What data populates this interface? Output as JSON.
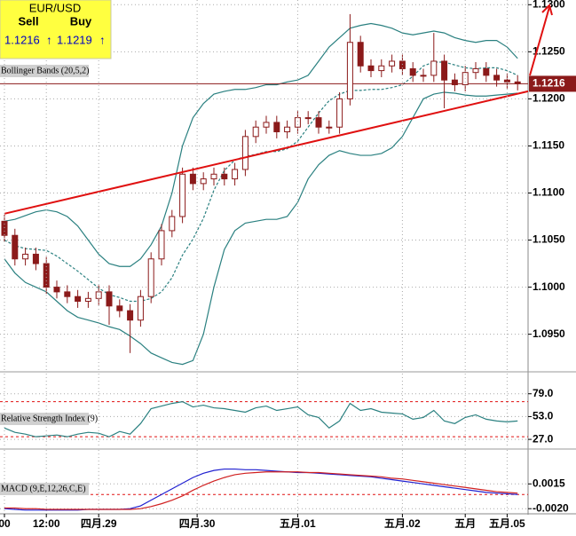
{
  "quote": {
    "symbol": "EUR/USD",
    "sell_label": "Sell",
    "buy_label": "Buy",
    "sell": 1.1216,
    "buy": 1.1219,
    "sell_arrow": "↑",
    "buy_arrow": "↑"
  },
  "chart_data": [
    {
      "type": "candlestick",
      "label": "Bollinger Bands (20,5,2)",
      "ylim": [
        1.0911,
        1.1305
      ],
      "yticks": [
        {
          "value": 1.13,
          "label": "1.1300"
        },
        {
          "value": 1.125,
          "label": "1.1250"
        },
        {
          "value": 1.12,
          "label": "1.1200"
        },
        {
          "value": 1.115,
          "label": "1.1150"
        },
        {
          "value": 1.11,
          "label": "1.1100"
        },
        {
          "value": 1.105,
          "label": "1.1050"
        },
        {
          "value": 1.1,
          "label": "1.1000"
        },
        {
          "value": 1.095,
          "label": "1.0950"
        }
      ],
      "grid": true,
      "color": "#8b1a1a",
      "last_price": 1.1216,
      "last_price_color": "#8b1a1a",
      "open": [
        1.107,
        1.1055,
        1.103,
        1.1035,
        1.1025,
        1.1,
        1.0995,
        1.099,
        1.0985,
        1.0988,
        1.0995,
        1.098,
        1.0975,
        1.0965,
        1.099,
        1.103,
        1.106,
        1.1075,
        1.112,
        1.111,
        1.1115,
        1.112,
        1.1115,
        1.1125,
        1.116,
        1.117,
        1.1175,
        1.1165,
        1.117,
        1.118,
        1.118,
        1.117,
        1.117,
        1.12,
        1.126,
        1.1235,
        1.123,
        1.1235,
        1.124,
        1.1232,
        1.1225,
        1.1225,
        1.124,
        1.122,
        1.1215,
        1.1228,
        1.1232,
        1.1225,
        1.122,
        1.1218
      ],
      "high": [
        1.1077,
        1.1062,
        1.1042,
        1.1042,
        1.1032,
        1.1007,
        1.1002,
        1.0997,
        1.0995,
        1.1002,
        1.1002,
        1.0987,
        1.0982,
        1.0997,
        1.1037,
        1.1067,
        1.1082,
        1.1127,
        1.1127,
        1.1122,
        1.1127,
        1.1127,
        1.1132,
        1.1167,
        1.1177,
        1.1182,
        1.1182,
        1.1177,
        1.1187,
        1.1187,
        1.1187,
        1.1177,
        1.1207,
        1.129,
        1.1267,
        1.1242,
        1.1242,
        1.1247,
        1.1247,
        1.1239,
        1.1232,
        1.127,
        1.1247,
        1.1227,
        1.1235,
        1.1239,
        1.1239,
        1.1232,
        1.1227,
        1.1225
      ],
      "low": [
        1.1048,
        1.1023,
        1.1023,
        1.1018,
        1.0993,
        1.0988,
        1.0983,
        1.0978,
        1.0978,
        1.0981,
        1.096,
        1.0968,
        1.093,
        1.0958,
        1.0983,
        1.1023,
        1.1053,
        1.1068,
        1.1103,
        1.1103,
        1.1108,
        1.1108,
        1.1108,
        1.1118,
        1.1153,
        1.1163,
        1.1158,
        1.1158,
        1.1163,
        1.1173,
        1.1163,
        1.1163,
        1.1163,
        1.1193,
        1.1228,
        1.1223,
        1.1223,
        1.1228,
        1.1225,
        1.1218,
        1.1218,
        1.1218,
        1.119,
        1.1208,
        1.1208,
        1.1221,
        1.1218,
        1.1213,
        1.1211,
        1.1209
      ],
      "close": [
        1.1055,
        1.103,
        1.1035,
        1.1025,
        1.1,
        1.0995,
        1.099,
        1.0985,
        1.0988,
        1.0995,
        1.098,
        1.0975,
        1.0965,
        1.099,
        1.103,
        1.106,
        1.1075,
        1.112,
        1.111,
        1.1115,
        1.112,
        1.1115,
        1.1125,
        1.116,
        1.117,
        1.1175,
        1.1165,
        1.117,
        1.118,
        1.118,
        1.117,
        1.117,
        1.12,
        1.126,
        1.1235,
        1.123,
        1.1235,
        1.124,
        1.1232,
        1.1225,
        1.1225,
        1.124,
        1.122,
        1.1215,
        1.1228,
        1.1232,
        1.1225,
        1.122,
        1.1218,
        1.1216
      ],
      "bands": {
        "color": "#2a8080",
        "upper": [
          1.107,
          1.1072,
          1.1076,
          1.108,
          1.1082,
          1.108,
          1.1075,
          1.1065,
          1.105,
          1.1035,
          1.1025,
          1.1022,
          1.1022,
          1.103,
          1.1045,
          1.1065,
          1.11,
          1.115,
          1.118,
          1.1195,
          1.1205,
          1.1208,
          1.121,
          1.121,
          1.1212,
          1.1215,
          1.1215,
          1.1218,
          1.122,
          1.1225,
          1.124,
          1.1255,
          1.1265,
          1.1275,
          1.1278,
          1.128,
          1.1278,
          1.1275,
          1.127,
          1.1268,
          1.127,
          1.1272,
          1.127,
          1.1265,
          1.1262,
          1.126,
          1.1262,
          1.1262,
          1.1255,
          1.1243
        ],
        "middle": [
          1.105,
          1.1044,
          1.1041,
          1.104,
          1.1039,
          1.1033,
          1.1025,
          1.1017,
          1.1008,
          1.0999,
          1.0992,
          1.0989,
          1.0985,
          1.0985,
          1.0988,
          1.0995,
          1.101,
          1.1034,
          1.1051,
          1.1073,
          1.1103,
          1.1124,
          1.1135,
          1.1139,
          1.1141,
          1.1144,
          1.1144,
          1.1147,
          1.1155,
          1.117,
          1.1185,
          1.1198,
          1.1205,
          1.1209,
          1.1209,
          1.121,
          1.121,
          1.1212,
          1.1215,
          1.1224,
          1.1235,
          1.1239,
          1.1239,
          1.1236,
          1.1233,
          1.1232,
          1.1233,
          1.1233,
          1.123,
          1.1225
        ],
        "lower": [
          1.103,
          1.1015,
          1.1005,
          1.1,
          1.0995,
          1.0985,
          1.0975,
          1.0968,
          1.0965,
          1.0962,
          1.0958,
          1.0955,
          1.0948,
          1.094,
          1.093,
          1.0925,
          1.092,
          1.0918,
          1.0922,
          1.095,
          1.1,
          1.104,
          1.106,
          1.1068,
          1.107,
          1.1072,
          1.1072,
          1.1075,
          1.109,
          1.1115,
          1.113,
          1.114,
          1.1145,
          1.1142,
          1.114,
          1.114,
          1.1142,
          1.1148,
          1.116,
          1.118,
          1.12,
          1.1205,
          1.1207,
          1.1206,
          1.1204,
          1.1203,
          1.1203,
          1.1204,
          1.1205,
          1.1206
        ]
      },
      "trendline": {
        "x": [
          0,
          50
        ],
        "y": [
          1.1078,
          1.1208
        ],
        "color": "#e01010"
      }
    },
    {
      "type": "line",
      "label": "Relative Strength Index (9)",
      "ylim": [
        17,
        102
      ],
      "yticks": [
        {
          "value": 79,
          "label": "79.0"
        },
        {
          "value": 53,
          "label": "53.0"
        },
        {
          "value": 27,
          "label": "27.0"
        }
      ],
      "grid": true,
      "levels": [
        70,
        30
      ],
      "level_color": "#e01010",
      "series": [
        {
          "color": "#2a8080",
          "values": [
            40,
            35,
            33,
            30,
            31,
            32,
            30,
            33,
            35,
            34,
            30,
            36,
            33,
            45,
            62,
            65,
            68,
            70,
            64,
            66,
            63,
            62,
            60,
            58,
            63,
            65,
            60,
            62,
            64,
            55,
            52,
            40,
            48,
            68,
            60,
            62,
            58,
            57,
            56,
            50,
            52,
            60,
            48,
            45,
            52,
            55,
            50,
            48,
            47,
            48
          ]
        }
      ]
    },
    {
      "type": "line",
      "label": "MACD (9,E,12,26,C,E)",
      "ylim": [
        -0.0026,
        0.0063
      ],
      "yticks": [
        {
          "value": 0.0015,
          "label": "0.0015"
        },
        {
          "value": -0.002,
          "label": "-0.0020"
        }
      ],
      "grid": true,
      "levels": [
        0
      ],
      "level_color": "#e01010",
      "series": [
        {
          "color": "#2020d0",
          "values": [
            -0.002,
            -0.0021,
            -0.0022,
            -0.0022,
            -0.0022,
            -0.0022,
            -0.0022,
            -0.0022,
            -0.0021,
            -0.0021,
            -0.0021,
            -0.0021,
            -0.002,
            -0.0016,
            -0.0008,
            0.0,
            0.0008,
            0.0016,
            0.0024,
            0.003,
            0.0034,
            0.0036,
            0.0036,
            0.0035,
            0.0035,
            0.0034,
            0.0033,
            0.0032,
            0.0031,
            0.0031,
            0.003,
            0.0029,
            0.0028,
            0.0027,
            0.0026,
            0.0025,
            0.0023,
            0.0021,
            0.0019,
            0.0017,
            0.0015,
            0.0013,
            0.0011,
            0.0009,
            0.0007,
            0.0005,
            0.0003,
            0.0002,
            0.0001,
            0.0
          ]
        },
        {
          "color": "#d02020",
          "values": [
            -0.0019,
            -0.0019,
            -0.002,
            -0.002,
            -0.0021,
            -0.0021,
            -0.0021,
            -0.0021,
            -0.0021,
            -0.0021,
            -0.0021,
            -0.0021,
            -0.0021,
            -0.002,
            -0.0017,
            -0.0013,
            -0.0008,
            -0.0002,
            0.0006,
            0.0013,
            0.0019,
            0.0024,
            0.0028,
            0.003,
            0.0031,
            0.0032,
            0.0032,
            0.0032,
            0.0032,
            0.0031,
            0.0031,
            0.003,
            0.0029,
            0.0028,
            0.0027,
            0.0026,
            0.0025,
            0.0023,
            0.0022,
            0.002,
            0.0018,
            0.0016,
            0.0014,
            0.0012,
            0.001,
            0.0008,
            0.0006,
            0.0004,
            0.0003,
            0.0002
          ]
        }
      ],
      "xticks": [
        {
          "value": 0,
          "label": "00"
        },
        {
          "value": 4,
          "label": "12:00"
        },
        {
          "value": 9,
          "label": "四月.29"
        },
        {
          "value": 18.4,
          "label": "四月.30"
        },
        {
          "value": 28,
          "label": "五月.01"
        },
        {
          "value": 38,
          "label": "五月.02"
        },
        {
          "value": 44,
          "label": "五月"
        },
        {
          "value": 48,
          "label": "五月.05"
        }
      ]
    }
  ]
}
